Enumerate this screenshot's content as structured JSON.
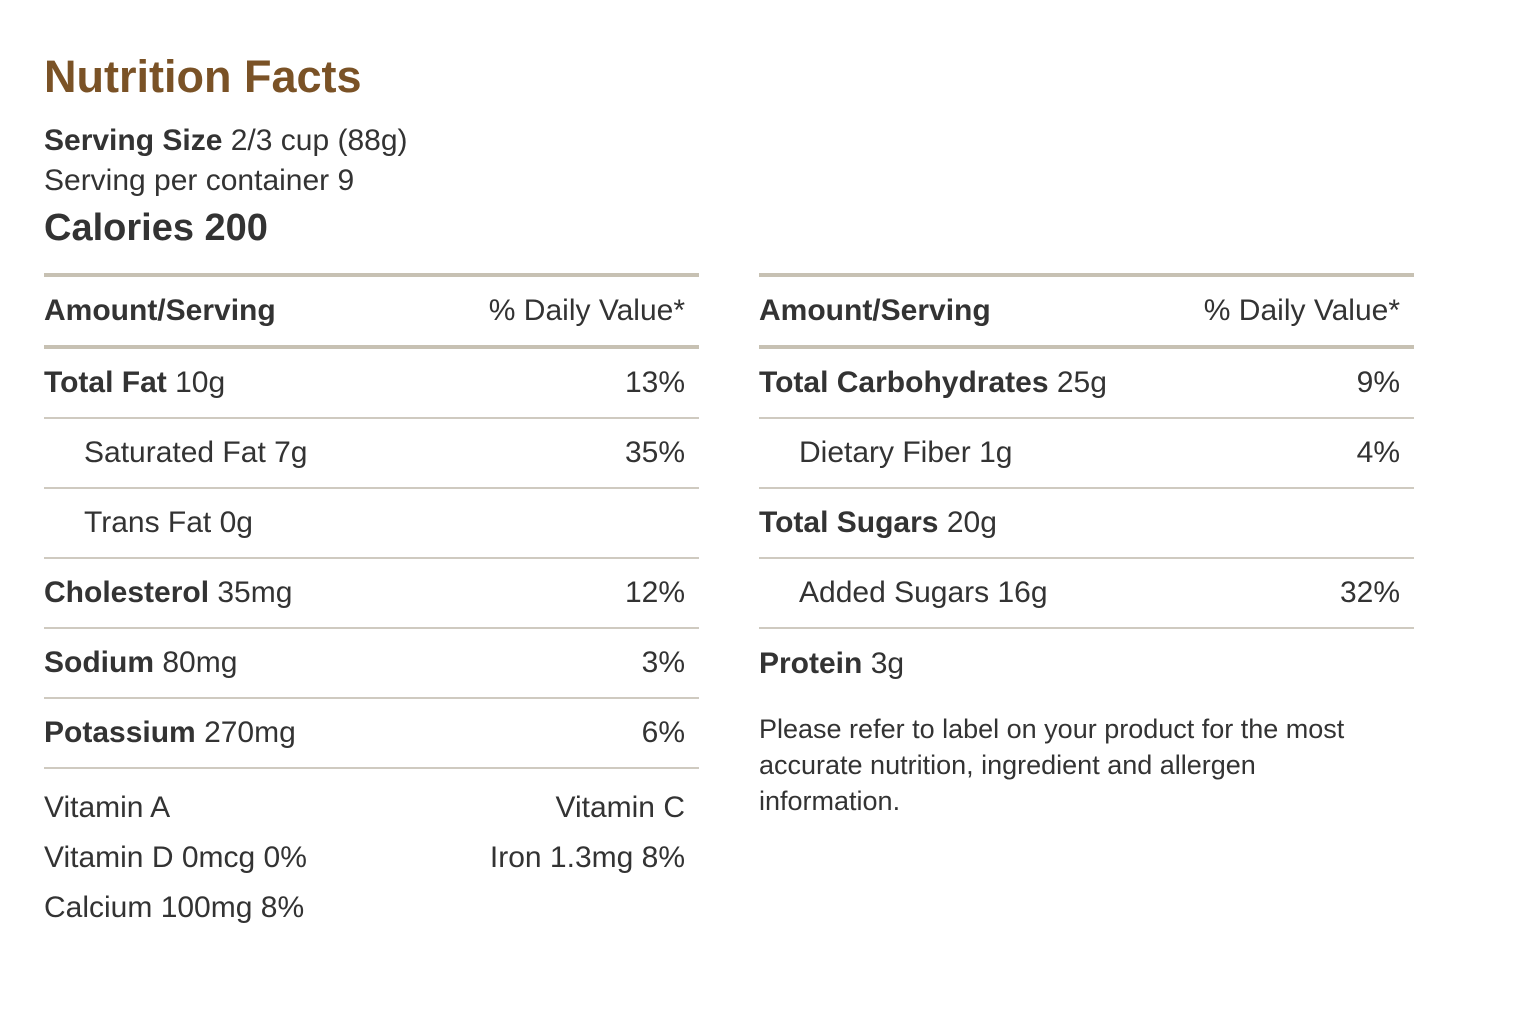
{
  "title": "Nutrition Facts",
  "serving": {
    "size_label": "Serving Size",
    "size_value": "2/3 cup (88g)",
    "per_container": "Serving per container 9"
  },
  "calories": "Calories 200",
  "left": {
    "header": {
      "amount": "Amount/Serving",
      "daily": "% Daily Value*"
    },
    "rows": [
      {
        "name": "Total Fat",
        "amount": "10g",
        "pct": "13%"
      },
      {
        "name": "Saturated Fat",
        "amount": "7g",
        "pct": "35%"
      },
      {
        "name": "Trans Fat",
        "amount": "0g",
        "pct": ""
      },
      {
        "name": "Cholesterol",
        "amount": "35mg",
        "pct": "12%"
      },
      {
        "name": "Sodium",
        "amount": "80mg",
        "pct": "3%"
      },
      {
        "name": "Potassium",
        "amount": "270mg",
        "pct": "6%"
      }
    ],
    "vitamins": [
      {
        "left": "Vitamin A",
        "right": "Vitamin C"
      },
      {
        "left": "Vitamin D 0mcg 0%",
        "right": "Iron 1.3mg 8%"
      },
      {
        "left": "Calcium 100mg 8%",
        "right": ""
      }
    ]
  },
  "right": {
    "header": {
      "amount": "Amount/Serving",
      "daily": "% Daily Value*"
    },
    "rows": [
      {
        "name": "Total Carbohydrates",
        "amount": "25g",
        "pct": "9%"
      },
      {
        "name": "Dietary Fiber",
        "amount": "1g",
        "pct": "4%"
      },
      {
        "name": "Total Sugars",
        "amount": "20g",
        "pct": ""
      },
      {
        "name": "Added Sugars",
        "amount": "16g",
        "pct": "32%"
      },
      {
        "name": "Protein",
        "amount": "3g",
        "pct": ""
      }
    ],
    "disclaimer": "Please refer to label on your product for the most accurate nutrition, ingredient and allergen information."
  },
  "colors": {
    "title": "#7a5226",
    "text": "#333333",
    "rule": "#c7c1b3"
  }
}
